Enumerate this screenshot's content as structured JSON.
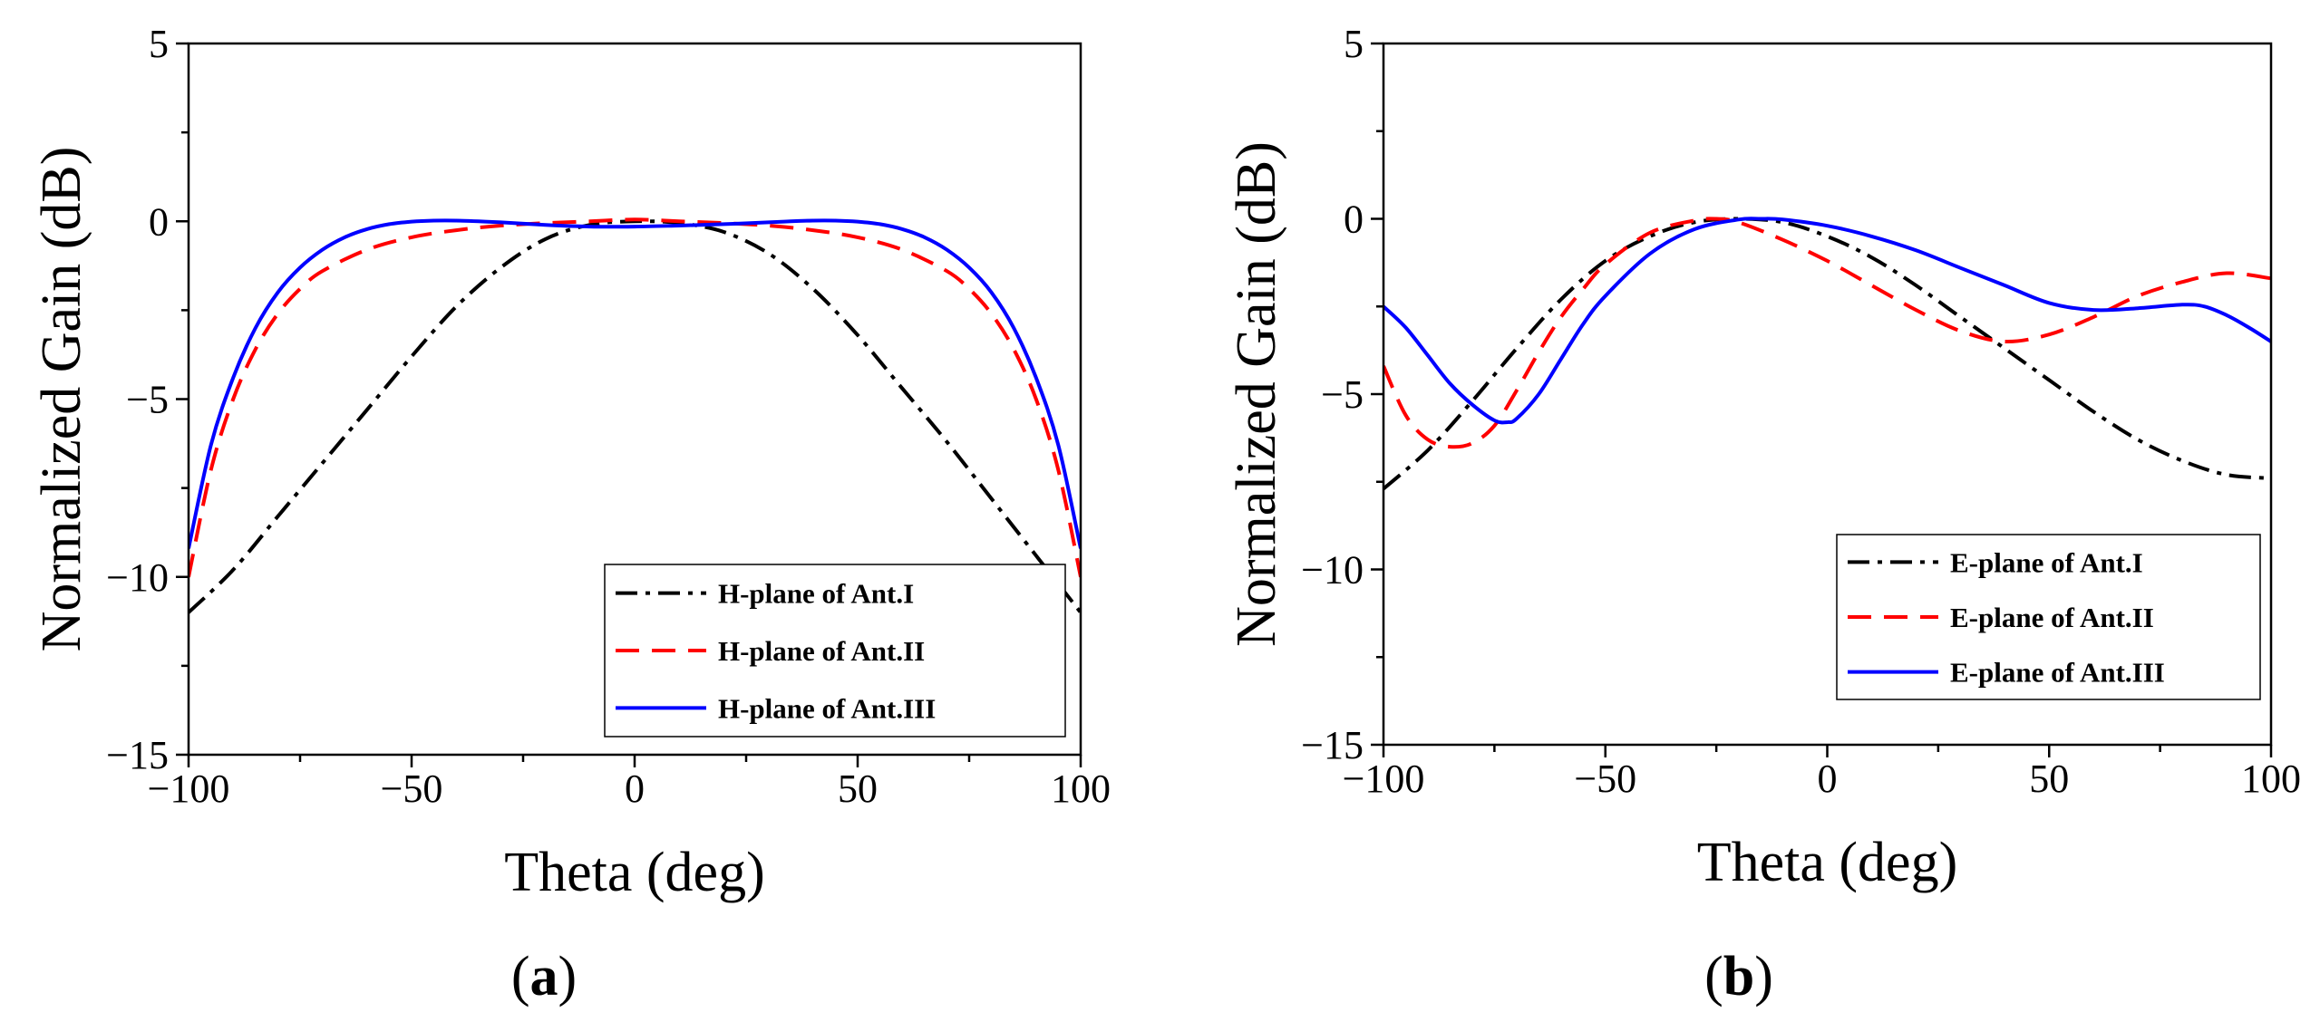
{
  "chart_data": [
    {
      "type": "line",
      "panel_label": "(a)",
      "xlabel": "Theta (deg)",
      "ylabel": "Normalized Gain (dB)",
      "xlim": [
        -100,
        100
      ],
      "ylim": [
        -15,
        5
      ],
      "xticks": [
        -100,
        -50,
        0,
        50,
        100
      ],
      "yticks": [
        -15,
        -10,
        -5,
        0,
        5
      ],
      "xtick_labels": [
        "−100",
        "−50",
        "0",
        "50",
        "100"
      ],
      "ytick_labels": [
        "−15",
        "−10",
        "−5",
        "0",
        "5"
      ],
      "legend_position": "bottom-right",
      "series": [
        {
          "name": "H-plane of Ant.I",
          "color": "#000000",
          "style": "dashdot",
          "x": [
            -100,
            -90,
            -80,
            -70,
            -60,
            -50,
            -40,
            -30,
            -20,
            -10,
            0,
            10,
            20,
            30,
            40,
            50,
            60,
            70,
            80,
            90,
            100
          ],
          "y": [
            -11.0,
            -9.8,
            -8.3,
            -6.8,
            -5.3,
            -3.8,
            -2.4,
            -1.3,
            -0.5,
            -0.1,
            0.0,
            -0.05,
            -0.3,
            -0.9,
            -1.9,
            -3.2,
            -4.7,
            -6.2,
            -7.8,
            -9.4,
            -11.0
          ]
        },
        {
          "name": "H-plane of Ant.II",
          "color": "#ff0000",
          "style": "dashed",
          "x": [
            -100,
            -95,
            -90,
            -85,
            -80,
            -75,
            -70,
            -60,
            -50,
            -40,
            -30,
            -20,
            -10,
            0,
            10,
            20,
            30,
            40,
            50,
            60,
            70,
            75,
            80,
            85,
            90,
            95,
            100
          ],
          "y": [
            -10.0,
            -7.0,
            -5.0,
            -3.6,
            -2.6,
            -1.9,
            -1.4,
            -0.8,
            -0.45,
            -0.25,
            -0.12,
            -0.05,
            0.0,
            0.05,
            0.0,
            -0.05,
            -0.12,
            -0.25,
            -0.45,
            -0.8,
            -1.4,
            -1.9,
            -2.6,
            -3.6,
            -5.0,
            -7.0,
            -10.0
          ]
        },
        {
          "name": "H-plane of Ant.III",
          "color": "#0000ff",
          "style": "solid",
          "x": [
            -100,
            -95,
            -90,
            -85,
            -80,
            -75,
            -70,
            -65,
            -60,
            -55,
            -50,
            -45,
            -40,
            -35,
            -30,
            -20,
            -10,
            0,
            10,
            20,
            30,
            35,
            40,
            45,
            50,
            55,
            60,
            65,
            70,
            75,
            80,
            85,
            90,
            95,
            100
          ],
          "y": [
            -9.2,
            -6.3,
            -4.4,
            -3.0,
            -2.0,
            -1.3,
            -0.8,
            -0.45,
            -0.22,
            -0.08,
            -0.01,
            0.02,
            0.02,
            0.0,
            -0.03,
            -0.1,
            -0.15,
            -0.15,
            -0.12,
            -0.08,
            -0.03,
            0.0,
            0.02,
            0.02,
            -0.01,
            -0.08,
            -0.22,
            -0.45,
            -0.8,
            -1.3,
            -2.0,
            -3.0,
            -4.4,
            -6.3,
            -9.2
          ]
        }
      ]
    },
    {
      "type": "line",
      "panel_label": "(b)",
      "xlabel": "Theta (deg)",
      "ylabel": "Normalized Gain (dB)",
      "xlim": [
        -100,
        100
      ],
      "ylim": [
        -15,
        5
      ],
      "xticks": [
        -100,
        -50,
        0,
        50,
        100
      ],
      "yticks": [
        -15,
        -10,
        -5,
        0,
        5
      ],
      "xtick_labels": [
        "−100",
        "−50",
        "0",
        "50",
        "100"
      ],
      "ytick_labels": [
        "−15",
        "−10",
        "−5",
        "0",
        "5"
      ],
      "legend_position": "bottom-right",
      "series": [
        {
          "name": "E-plane of Ant.I",
          "color": "#000000",
          "style": "dashdot",
          "x": [
            -100,
            -90,
            -80,
            -70,
            -60,
            -50,
            -40,
            -30,
            -20,
            -10,
            0,
            10,
            20,
            30,
            40,
            50,
            60,
            70,
            80,
            90,
            100
          ],
          "y": [
            -7.7,
            -6.6,
            -5.2,
            -3.7,
            -2.3,
            -1.2,
            -0.5,
            -0.1,
            0.0,
            -0.1,
            -0.5,
            -1.1,
            -1.9,
            -2.8,
            -3.7,
            -4.6,
            -5.5,
            -6.3,
            -6.9,
            -7.3,
            -7.4
          ]
        },
        {
          "name": "E-plane of Ant.II",
          "color": "#ff0000",
          "style": "dashed",
          "x": [
            -100,
            -95,
            -90,
            -85,
            -80,
            -75,
            -70,
            -65,
            -60,
            -55,
            -50,
            -40,
            -30,
            -25,
            -20,
            -10,
            0,
            10,
            20,
            30,
            40,
            50,
            60,
            70,
            80,
            90,
            100
          ],
          "y": [
            -4.2,
            -5.6,
            -6.3,
            -6.5,
            -6.4,
            -5.9,
            -4.9,
            -3.8,
            -2.8,
            -2.0,
            -1.3,
            -0.4,
            -0.05,
            0.0,
            -0.1,
            -0.6,
            -1.2,
            -1.9,
            -2.6,
            -3.2,
            -3.5,
            -3.3,
            -2.8,
            -2.2,
            -1.8,
            -1.55,
            -1.7
          ]
        },
        {
          "name": "E-plane of Ant.III",
          "color": "#0000ff",
          "style": "solid",
          "x": [
            -100,
            -95,
            -90,
            -85,
            -80,
            -75,
            -72,
            -70,
            -65,
            -60,
            -55,
            -50,
            -40,
            -30,
            -20,
            -15,
            -10,
            0,
            10,
            20,
            30,
            40,
            50,
            60,
            70,
            80,
            85,
            90,
            95,
            100
          ],
          "y": [
            -2.5,
            -3.1,
            -3.9,
            -4.7,
            -5.3,
            -5.75,
            -5.8,
            -5.7,
            -5.0,
            -4.0,
            -3.0,
            -2.2,
            -1.0,
            -0.3,
            -0.02,
            0.0,
            -0.02,
            -0.2,
            -0.5,
            -0.9,
            -1.4,
            -1.9,
            -2.4,
            -2.6,
            -2.55,
            -2.45,
            -2.5,
            -2.75,
            -3.1,
            -3.5
          ]
        }
      ]
    }
  ]
}
